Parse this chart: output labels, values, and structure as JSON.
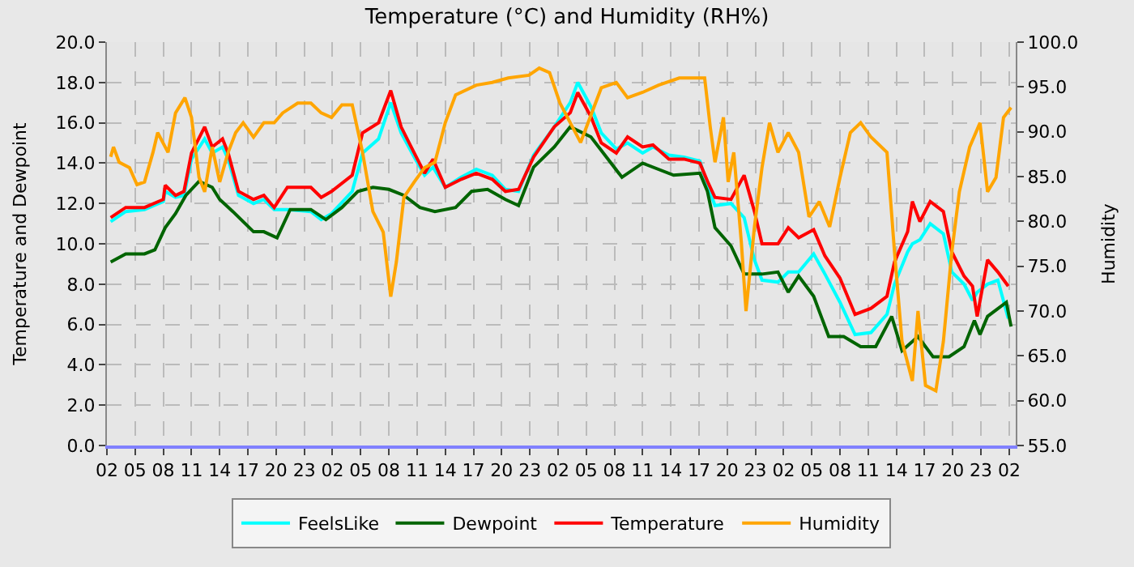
{
  "chart_data": {
    "type": "line",
    "title": "Temperature (°C) and Humidity (RH%)",
    "ylabel": "Temperature and Dewpoint",
    "y2label": "Humidity",
    "xlim": [
      "--01-01T02:00",
      "--01-05T02:42"
    ],
    "xticks": [
      {
        "value": "--01-01T02:00",
        "label": "02"
      },
      {
        "value": "--01-01T05:00",
        "label": "05"
      },
      {
        "value": "--01-01T08:00",
        "label": "08"
      },
      {
        "value": "--01-01T11:00",
        "label": "11"
      },
      {
        "value": "--01-01T14:00",
        "label": "14"
      },
      {
        "value": "--01-01T17:00",
        "label": "17"
      },
      {
        "value": "--01-01T20:00",
        "label": "20"
      },
      {
        "value": "--01-01T23:00",
        "label": "23"
      },
      {
        "value": "--01-02T02:00",
        "label": "02"
      },
      {
        "value": "--01-02T05:00",
        "label": "05"
      },
      {
        "value": "--01-02T08:00",
        "label": "08"
      },
      {
        "value": "--01-02T11:00",
        "label": "11"
      },
      {
        "value": "--01-02T14:00",
        "label": "14"
      },
      {
        "value": "--01-02T17:00",
        "label": "17"
      },
      {
        "value": "--01-02T20:00",
        "label": "20"
      },
      {
        "value": "--01-02T23:00",
        "label": "23"
      },
      {
        "value": "--01-03T02:00",
        "label": "02"
      },
      {
        "value": "--01-03T05:00",
        "label": "05"
      },
      {
        "value": "--01-03T08:00",
        "label": "08"
      },
      {
        "value": "--01-03T11:00",
        "label": "11"
      },
      {
        "value": "--01-03T14:00",
        "label": "14"
      },
      {
        "value": "--01-03T17:00",
        "label": "17"
      },
      {
        "value": "--01-03T20:00",
        "label": "20"
      },
      {
        "value": "--01-03T23:00",
        "label": "23"
      },
      {
        "value": "--01-04T02:00",
        "label": "02"
      },
      {
        "value": "--01-04T05:00",
        "label": "05"
      },
      {
        "value": "--01-04T08:00",
        "label": "08"
      },
      {
        "value": "--01-04T11:00",
        "label": "11"
      },
      {
        "value": "--01-04T14:00",
        "label": "14"
      },
      {
        "value": "--01-04T17:00",
        "label": "17"
      },
      {
        "value": "--01-04T20:00",
        "label": "20"
      },
      {
        "value": "--01-04T23:00",
        "label": "23"
      },
      {
        "value": "--01-05T02:00",
        "label": "02"
      }
    ],
    "ylim": [
      0,
      20
    ],
    "yticks": [
      {
        "value": 0,
        "label": "0.0"
      },
      {
        "value": 2,
        "label": "2.0"
      },
      {
        "value": 4,
        "label": "4.0"
      },
      {
        "value": 6,
        "label": "6.0"
      },
      {
        "value": 8,
        "label": "8.0"
      },
      {
        "value": 10,
        "label": "10.0"
      },
      {
        "value": 12,
        "label": "12.0"
      },
      {
        "value": 14,
        "label": "14.0"
      },
      {
        "value": 16,
        "label": "16.0"
      },
      {
        "value": 18,
        "label": "18.0"
      },
      {
        "value": 20,
        "label": "20.0"
      }
    ],
    "y2lim": [
      55,
      100
    ],
    "y2ticks": [
      {
        "value": 55,
        "label": "55.0"
      },
      {
        "value": 60,
        "label": "60.0"
      },
      {
        "value": 65,
        "label": "65.0"
      },
      {
        "value": 70,
        "label": "70.0"
      },
      {
        "value": 75,
        "label": "75.0"
      },
      {
        "value": 80,
        "label": "80.0"
      },
      {
        "value": 85,
        "label": "85.0"
      },
      {
        "value": 90,
        "label": "90.0"
      },
      {
        "value": 95,
        "label": "95.0"
      },
      {
        "value": 100,
        "label": "100.0"
      }
    ],
    "grid": true,
    "legend": "bottom",
    "marker": "none",
    "line_style": "solid",
    "x": [
      "--01-01T02:24",
      "--01-01T04:00",
      "--01-01T06:00",
      "--01-01T08:00",
      "--01-01T08:12",
      "--01-01T09:18",
      "--01-01T10:12",
      "--01-01T11:00",
      "--01-01T12:24",
      "--01-01T13:12",
      "--01-01T14:18",
      "--01-01T14:54",
      "--01-01T16:00",
      "--01-01T17:36",
      "--01-01T18:42",
      "--01-01T19:48",
      "--01-01T21:12",
      "--01-01T23:42",
      "--01-02T00:48",
      "--01-02T01:54",
      "--01-02T04:06",
      "--01-02T05:12",
      "--01-02T06:54",
      "--01-02T08:12",
      "--01-02T09:18",
      "--01-02T10:42",
      "--01-02T11:48",
      "--01-02T12:42",
      "--01-02T14:00",
      "--01-02T15:42",
      "--01-02T17:18",
      "--01-02T19:00",
      "--01-02T20:24",
      "--01-02T21:48",
      "--01-02T23:24",
      "--01-03T01:36",
      "--01-03T03:18",
      "--01-03T04:06",
      "--01-03T05:30",
      "--01-03T06:36",
      "--01-03T08:12",
      "--01-03T09:24",
      "--01-03T11:00",
      "--01-03T12:06",
      "--01-03T13:48",
      "--01-03T15:24",
      "--01-03T17:06",
      "--01-03T17:54",
      "--01-03T18:42",
      "--01-03T20:24",
      "--01-03T21:48",
      "--01-03T22:54",
      "--01-03T23:42",
      "--01-04T01:24",
      "--01-04T02:30",
      "--01-04T03:36",
      "--01-04T05:12",
      "--01-04T06:24",
      "--01-04T08:00",
      "--01-04T09:36",
      "--01-04T11:18",
      "--01-04T13:00",
      "--01-04T13:48",
      "--01-04T15:12",
      "--01-04T15:42",
      "--01-04T16:30",
      "--01-04T17:36",
      "--01-04T19:00",
      "--01-04T19:54",
      "--01-04T21:12",
      "--01-04T22:06",
      "--01-04T22:36",
      "--01-04T23:42",
      "--01-05T00:48",
      "--01-05T01:54"
    ],
    "series": [
      {
        "name": "FeelsLike",
        "color": "#00ffff",
        "values": [
          11.1,
          11.6,
          11.7,
          12.1,
          12.6,
          12.3,
          12.4,
          14.2,
          15.2,
          14.5,
          14.8,
          14.2,
          12.4,
          12.0,
          12.2,
          11.7,
          11.7,
          11.6,
          11.2,
          11.5,
          12.6,
          14.5,
          15.2,
          17.0,
          15.5,
          14.3,
          13.4,
          13.8,
          12.8,
          13.3,
          13.7,
          13.4,
          12.7,
          12.6,
          14.4,
          15.8,
          17.0,
          18.0,
          16.8,
          15.5,
          14.7,
          15.0,
          14.5,
          14.8,
          14.4,
          14.3,
          14.1,
          12.9,
          11.9,
          12.0,
          11.3,
          9.2,
          8.2,
          8.1,
          8.6,
          8.6,
          9.5,
          8.5,
          7.1,
          5.5,
          5.6,
          6.5,
          8.0,
          9.6,
          10.0,
          10.2,
          11.0,
          10.5,
          8.6,
          8.0,
          7.2,
          7.6,
          8.0,
          8.2,
          6.3
        ]
      },
      {
        "name": "Dewpoint",
        "color": "#006400",
        "x": [
          "--01-01T02:24",
          "--01-01T04:00",
          "--01-01T06:00",
          "--01-01T07:06",
          "--01-01T08:12",
          "--01-01T09:18",
          "--01-01T10:24",
          "--01-01T11:48",
          "--01-01T13:12",
          "--01-01T14:00",
          "--01-01T15:24",
          "--01-01T16:30",
          "--01-01T17:36",
          "--01-01T18:42",
          "--01-01T20:06",
          "--01-01T21:30",
          "--01-01T23:42",
          "--01-02T01:18",
          "--01-02T03:00",
          "--01-02T04:42",
          "--01-02T06:18",
          "--01-02T08:00",
          "--01-02T09:36",
          "--01-02T11:18",
          "--01-02T12:54",
          "--01-02T15:06",
          "--01-02T16:48",
          "--01-02T18:30",
          "--01-02T20:24",
          "--01-02T21:48",
          "--01-02T23:24",
          "--01-03T01:36",
          "--01-03T03:18",
          "--01-03T05:30",
          "--01-03T08:48",
          "--01-03T11:00",
          "--01-03T14:18",
          "--01-03T17:06",
          "--01-03T17:54",
          "--01-03T18:42",
          "--01-03T20:24",
          "--01-03T21:48",
          "--01-03T23:42",
          "--01-04T01:24",
          "--01-04T02:30",
          "--01-04T03:36",
          "--01-04T05:12",
          "--01-04T06:48",
          "--01-04T08:24",
          "--01-04T10:12",
          "--01-04T11:48",
          "--01-04T13:30",
          "--01-04T14:36",
          "--01-04T16:18",
          "--01-04T17:54",
          "--01-04T19:36",
          "--01-04T21:12",
          "--01-04T22:18",
          "--01-04T22:54",
          "--01-04T23:42",
          "--01-05T01:42",
          "--01-05T02:12"
        ],
        "values": [
          9.1,
          9.5,
          9.5,
          9.7,
          10.8,
          11.5,
          12.4,
          13.1,
          12.8,
          12.2,
          11.6,
          11.1,
          10.6,
          10.6,
          10.3,
          11.7,
          11.7,
          11.2,
          11.8,
          12.6,
          12.8,
          12.7,
          12.4,
          11.8,
          11.6,
          11.8,
          12.6,
          12.7,
          12.2,
          11.9,
          13.8,
          14.8,
          15.8,
          15.3,
          13.3,
          14.0,
          13.4,
          13.5,
          12.6,
          10.8,
          9.9,
          8.5,
          8.5,
          8.6,
          7.6,
          8.4,
          7.4,
          5.4,
          5.4,
          4.9,
          4.9,
          6.4,
          4.7,
          5.4,
          4.4,
          4.4,
          4.9,
          6.2,
          5.5,
          6.4,
          7.1,
          5.9
        ]
      },
      {
        "name": "Temperature",
        "color": "#ff0000",
        "values": [
          11.3,
          11.8,
          11.8,
          12.2,
          12.9,
          12.4,
          12.6,
          14.5,
          15.8,
          14.8,
          15.2,
          14.5,
          12.6,
          12.2,
          12.4,
          11.8,
          12.8,
          12.8,
          12.3,
          12.6,
          13.4,
          15.5,
          16.0,
          17.6,
          15.8,
          14.5,
          13.5,
          14.2,
          12.8,
          13.2,
          13.5,
          13.2,
          12.6,
          12.7,
          14.3,
          15.8,
          16.5,
          17.5,
          16.3,
          15.0,
          14.5,
          15.3,
          14.8,
          14.9,
          14.2,
          14.2,
          14.0,
          13.1,
          12.3,
          12.2,
          13.4,
          11.6,
          10.0,
          10.0,
          10.8,
          10.3,
          10.7,
          9.4,
          8.3,
          6.5,
          6.8,
          7.4,
          9.1,
          10.6,
          12.1,
          11.1,
          12.1,
          11.6,
          9.6,
          8.4,
          7.9,
          6.4,
          9.2,
          8.6,
          7.9
        ]
      },
      {
        "name": "Humidity",
        "color": "#ffa500",
        "axis": "y2",
        "x": [
          "--01-01T02:24",
          "--01-01T02:42",
          "--01-01T03:18",
          "--01-01T04:24",
          "--01-01T05:12",
          "--01-01T06:00",
          "--01-01T06:54",
          "--01-01T07:24",
          "--01-01T08:30",
          "--01-01T09:18",
          "--01-01T10:18",
          "--01-01T11:00",
          "--01-01T11:48",
          "--01-01T12:24",
          "--01-01T13:12",
          "--01-01T14:00",
          "--01-01T14:54",
          "--01-01T15:42",
          "--01-01T16:30",
          "--01-01T17:36",
          "--01-01T18:42",
          "--01-01T19:48",
          "--01-01T20:42",
          "--01-01T22:18",
          "--01-01T23:42",
          "--01-02T00:48",
          "--01-02T01:54",
          "--01-02T03:00",
          "--01-02T04:06",
          "--01-02T05:12",
          "--01-02T06:18",
          "--01-02T07:24",
          "--01-02T08:12",
          "--01-02T08:48",
          "--01-02T09:36",
          "--01-02T10:42",
          "--01-02T11:48",
          "--01-02T12:54",
          "--01-02T14:00",
          "--01-02T15:06",
          "--01-02T17:18",
          "--01-02T19:00",
          "--01-02T20:42",
          "--01-02T22:54",
          "--01-03T00:00",
          "--01-03T01:06",
          "--01-03T02:12",
          "--01-03T04:24",
          "--01-03T06:36",
          "--01-03T08:12",
          "--01-03T09:24",
          "--01-03T11:00",
          "--01-03T12:42",
          "--01-03T14:54",
          "--01-03T17:36",
          "--01-03T18:12",
          "--01-03T18:42",
          "--01-03T19:36",
          "--01-03T20:06",
          "--01-03T20:42",
          "--01-03T21:30",
          "--01-03T22:00",
          "--01-03T22:54",
          "--01-03T23:42",
          "--01-04T00:30",
          "--01-04T01:24",
          "--01-04T02:30",
          "--01-04T03:36",
          "--01-04T04:42",
          "--01-04T05:48",
          "--01-04T06:54",
          "--01-04T08:00",
          "--01-04T09:06",
          "--01-04T10:12",
          "--01-04T11:18",
          "--01-04T13:00",
          "--01-04T13:48",
          "--01-04T14:36",
          "--01-04T15:42",
          "--01-04T16:18",
          "--01-04T17:06",
          "--01-04T18:12",
          "--01-04T19:00",
          "--01-04T19:54",
          "--01-04T20:42",
          "--01-04T21:48",
          "--01-04T22:54",
          "--01-04T23:42",
          "--01-05T00:36",
          "--01-05T01:24",
          "--01-05T02:12"
        ],
        "values": [
          87.2,
          88.3,
          86.6,
          86.0,
          84.1,
          84.4,
          87.7,
          89.9,
          87.7,
          92.1,
          93.8,
          91.6,
          84.9,
          83.3,
          88.3,
          84.4,
          87.7,
          89.9,
          91.0,
          89.4,
          91.0,
          91.0,
          92.1,
          93.2,
          93.2,
          92.1,
          91.6,
          93.0,
          93.0,
          87.7,
          81.1,
          78.8,
          71.6,
          75.5,
          82.7,
          84.4,
          86.0,
          86.6,
          91.0,
          94.1,
          95.2,
          95.5,
          96.0,
          96.3,
          97.1,
          96.6,
          93.2,
          88.8,
          94.9,
          95.5,
          93.8,
          94.4,
          95.2,
          96.0,
          96.0,
          90.5,
          86.6,
          91.6,
          84.4,
          87.7,
          77.7,
          70.0,
          79.4,
          86.0,
          91.0,
          87.7,
          89.9,
          87.7,
          80.5,
          82.2,
          79.4,
          84.9,
          89.9,
          91.0,
          89.4,
          87.7,
          76.6,
          66.6,
          62.2,
          70.0,
          61.7,
          61.1,
          66.6,
          76.6,
          83.3,
          88.3,
          91.0,
          83.3,
          84.9,
          91.6,
          92.7
        ]
      }
    ]
  }
}
